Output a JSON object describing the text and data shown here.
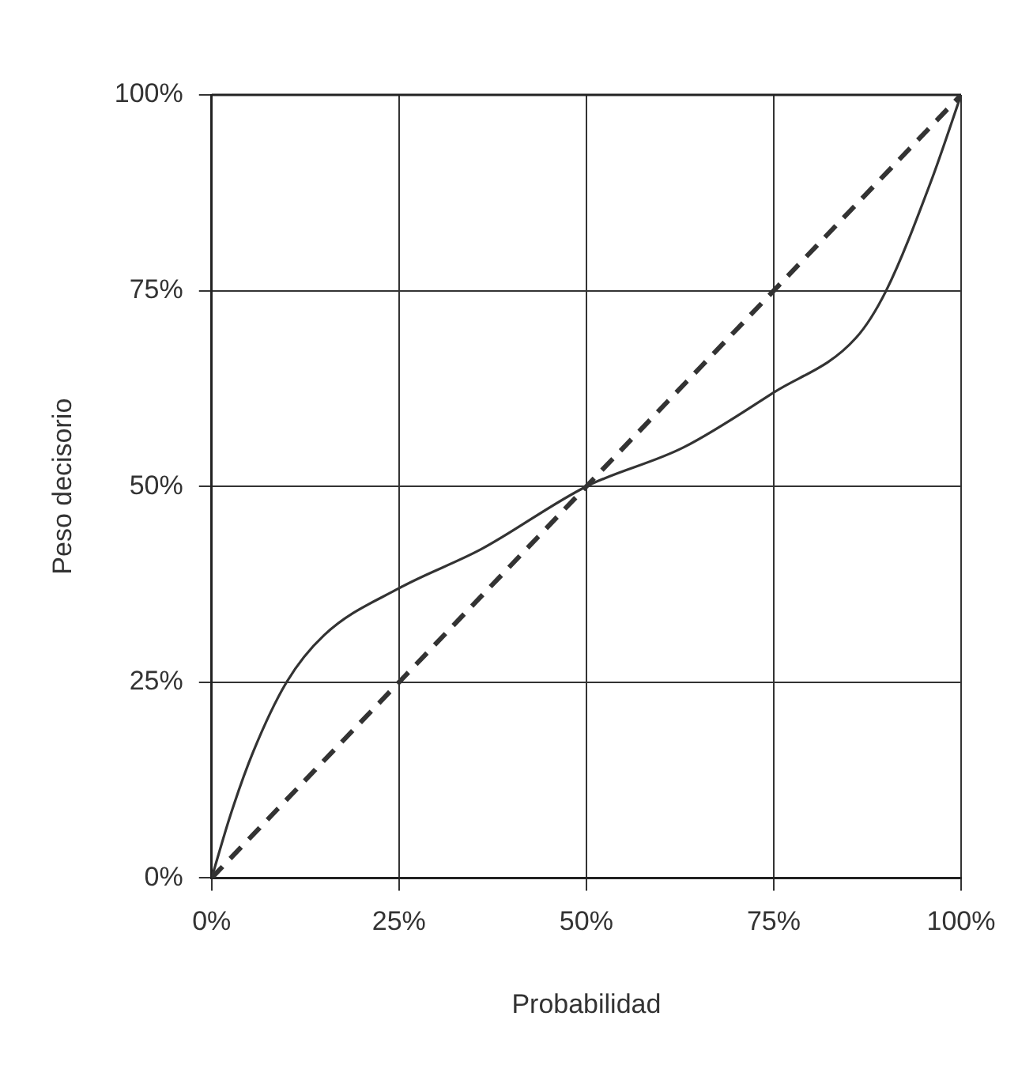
{
  "chart_data": {
    "type": "line",
    "xlabel": "Probabilidad",
    "ylabel": "Peso decisorio",
    "xlim": [
      0,
      100
    ],
    "ylim": [
      0,
      100
    ],
    "xticks": [
      {
        "value": 0,
        "label": "0%"
      },
      {
        "value": 25,
        "label": "25%"
      },
      {
        "value": 50,
        "label": "50%"
      },
      {
        "value": 75,
        "label": "75%"
      },
      {
        "value": 100,
        "label": "100%"
      }
    ],
    "yticks": [
      {
        "value": 0,
        "label": "0%"
      },
      {
        "value": 25,
        "label": "25%"
      },
      {
        "value": 50,
        "label": "50%"
      },
      {
        "value": 75,
        "label": "75%"
      },
      {
        "value": 100,
        "label": "100%"
      }
    ],
    "grid": true,
    "legend": false,
    "marker": "none",
    "series": [
      {
        "color": "#333333",
        "line_style": "solid",
        "x": [
          0,
          2.5,
          5.5,
          10,
          15,
          25,
          36,
          50,
          63,
          75,
          86,
          90,
          96,
          100
        ],
        "values": [
          0,
          8,
          16,
          25,
          31,
          37,
          42,
          50,
          55,
          62,
          69,
          75,
          89,
          100
        ]
      },
      {
        "color": "#333333",
        "line_style": "dashed",
        "x": [
          0,
          100
        ],
        "values": [
          0,
          100
        ]
      }
    ]
  }
}
